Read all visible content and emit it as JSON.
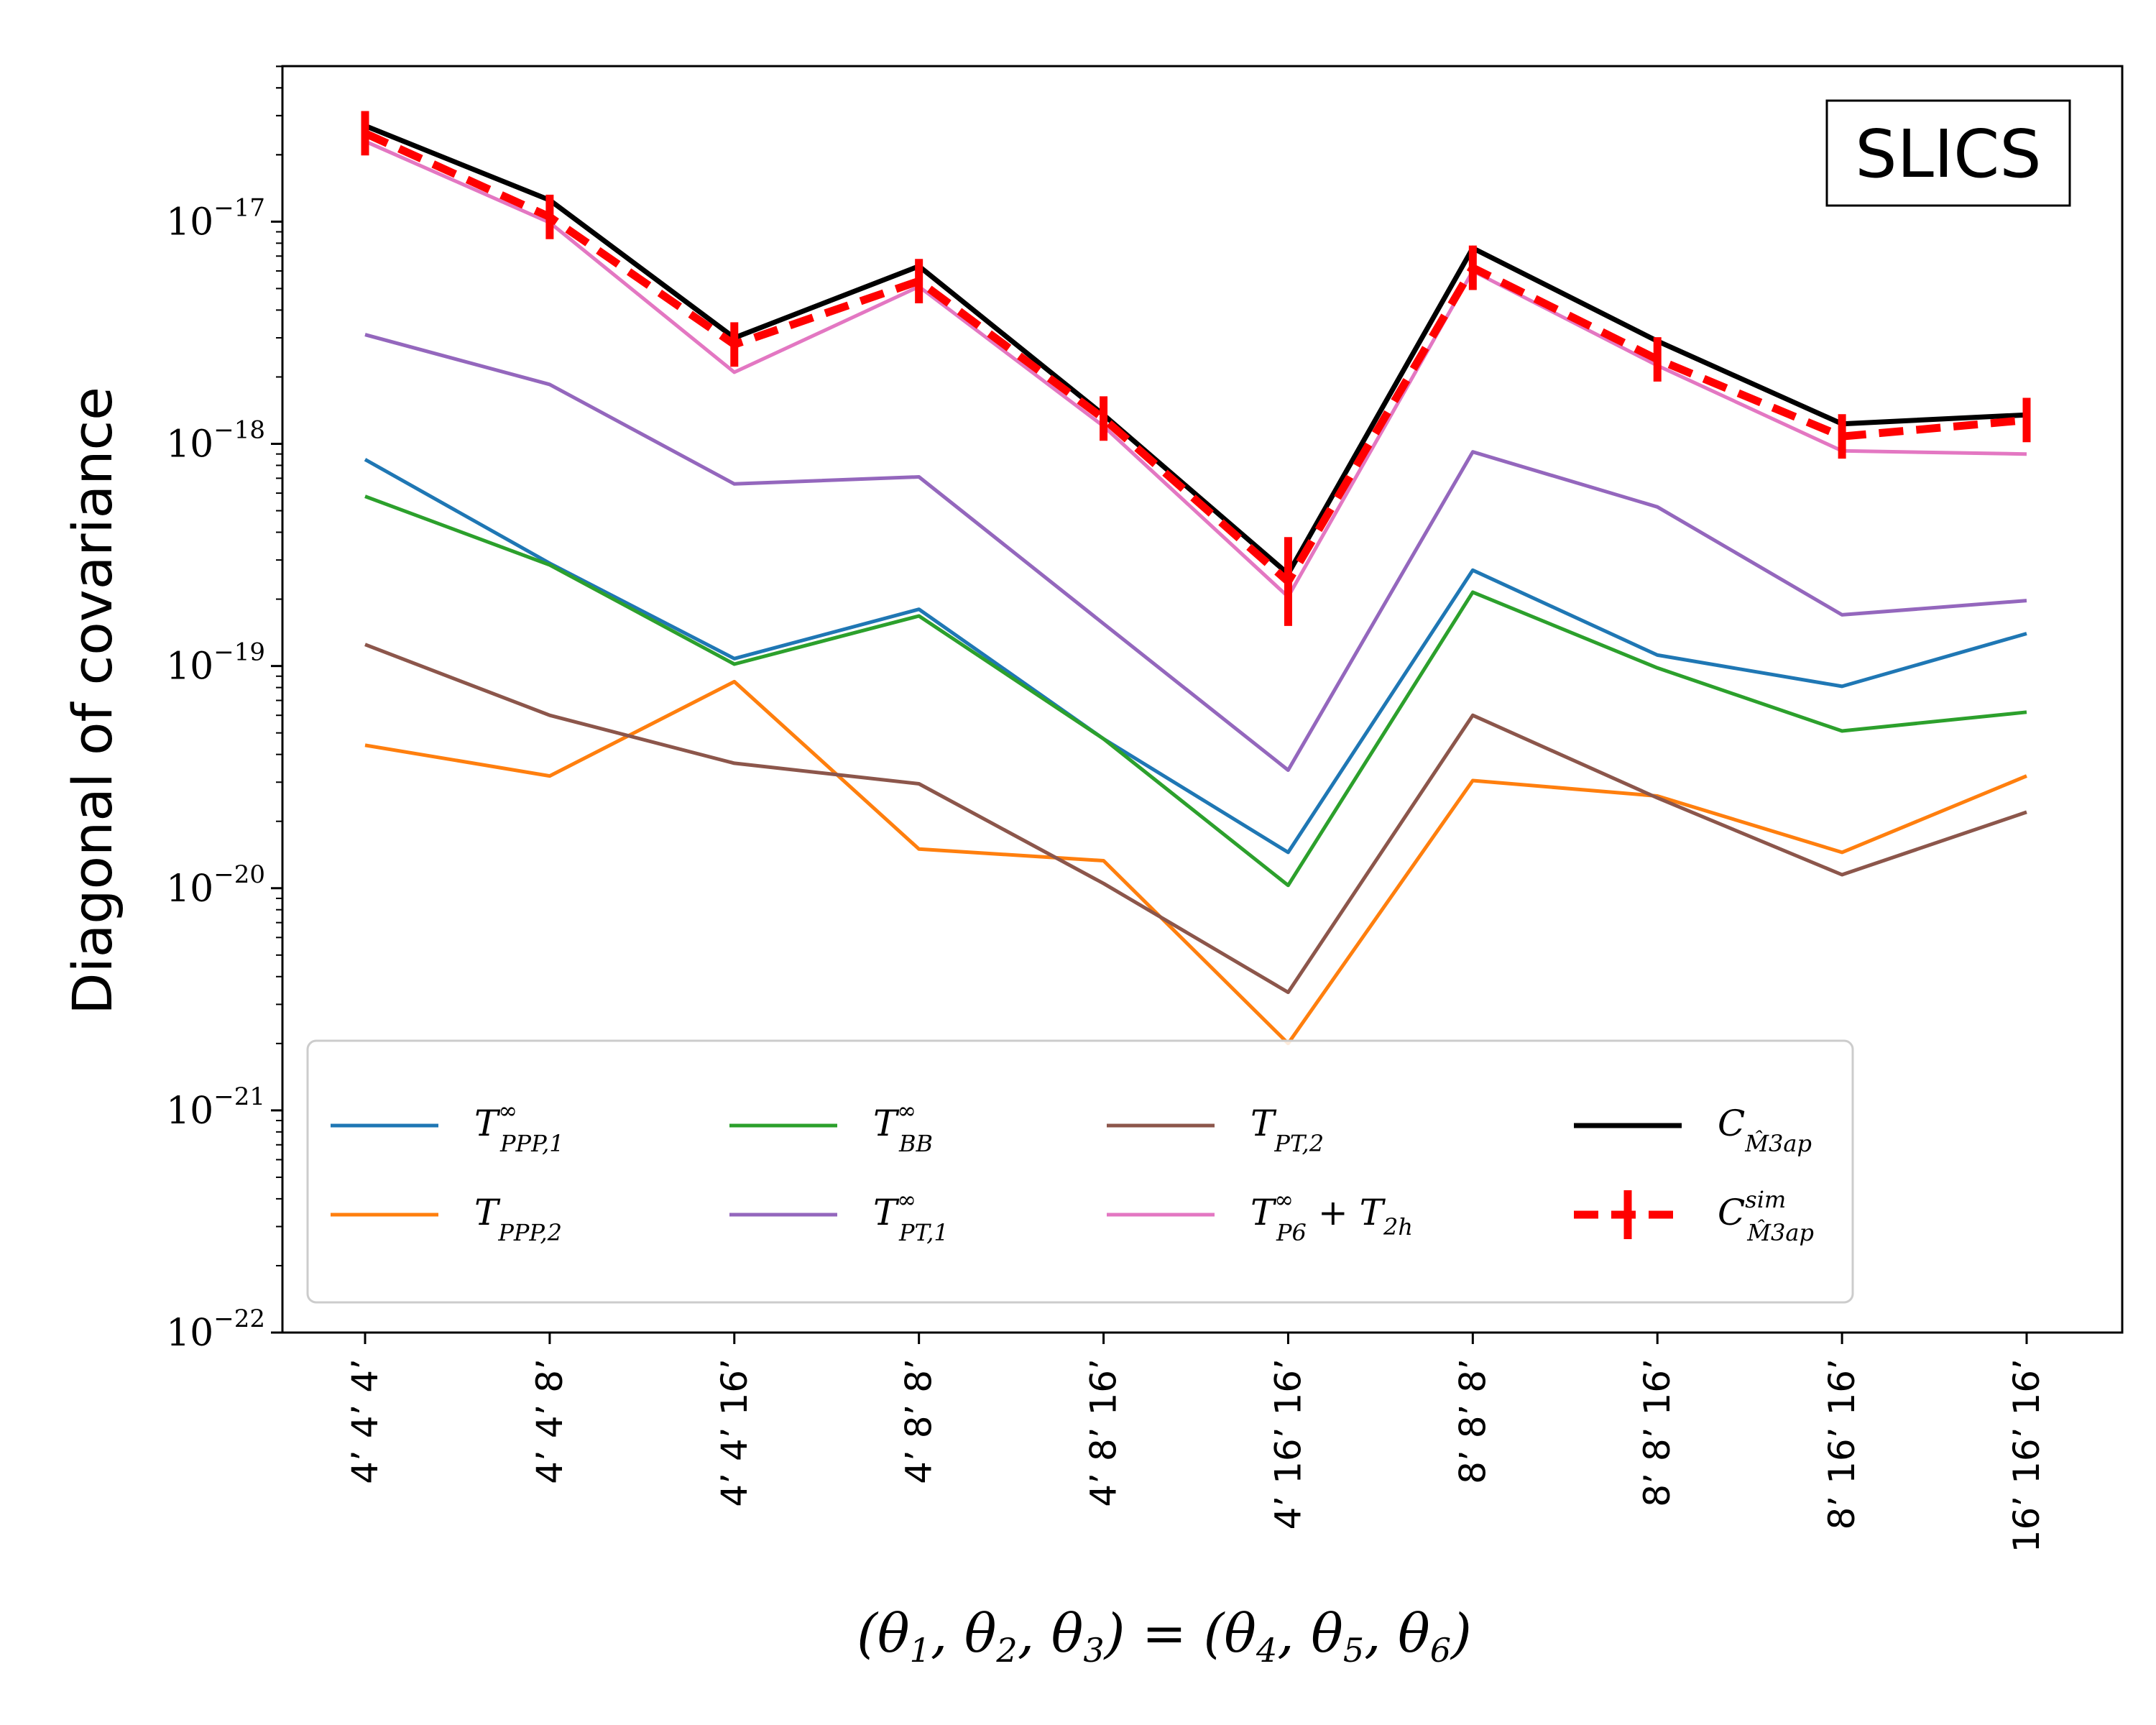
{
  "chart_data": {
    "type": "line",
    "badge": "SLICS",
    "ylabel": "Diagonal of covariance",
    "xlabel": "(θ1, θ2, θ3) = (θ4, θ5, θ6)",
    "yscale": "log",
    "ylim_exp": [
      -22,
      -16.3
    ],
    "ytick_exps": [
      -22,
      -21,
      -20,
      -19,
      -18,
      -17
    ],
    "ytick_base": "10",
    "categories": [
      "4’ 4’ 4’",
      "4’ 4’ 8’",
      "4’ 4’ 16’",
      "4’ 8’ 8’",
      "4’ 8’ 16’",
      "4’ 16’ 16’",
      "8’ 8’ 8’",
      "8’ 8’ 16’",
      "8’ 16’ 16’",
      "16’ 16’ 16’"
    ],
    "legend_position": "lower-center",
    "series": [
      {
        "name": "T∞PPP,1",
        "main": "T",
        "sup": "∞",
        "sub": "PPP,1",
        "color": "#1f77b4",
        "style": "solid",
        "values": [
          8.5e-19,
          2.9e-19,
          1.08e-19,
          1.8e-19,
          4.7e-20,
          1.45e-20,
          2.7e-19,
          1.12e-19,
          8.1e-20,
          1.4e-19
        ]
      },
      {
        "name": "TPPP,2",
        "main": "T",
        "sup": "",
        "sub": "PPP,2",
        "color": "#ff7f0e",
        "style": "solid",
        "values": [
          4.4e-20,
          3.2e-20,
          8.5e-20,
          1.5e-20,
          1.33e-20,
          2e-21,
          3.05e-20,
          2.6e-20,
          1.45e-20,
          3.2e-20
        ]
      },
      {
        "name": "T∞BB",
        "main": "T",
        "sup": "∞",
        "sub": "BB",
        "color": "#2ca02c",
        "style": "solid",
        "values": [
          5.8e-19,
          2.85e-19,
          1.02e-19,
          1.68e-19,
          4.7e-20,
          1.03e-20,
          2.15e-19,
          9.8e-20,
          5.1e-20,
          6.2e-20
        ]
      },
      {
        "name": "T∞PT,1",
        "main": "T",
        "sup": "∞",
        "sub": "PT,1",
        "color": "#9467bd",
        "style": "solid",
        "values": [
          3.1e-18,
          1.85e-18,
          6.6e-19,
          7.1e-19,
          1.55e-19,
          3.4e-20,
          9.2e-19,
          5.2e-19,
          1.7e-19,
          1.97e-19
        ]
      },
      {
        "name": "TPT,2",
        "main": "T",
        "sup": "",
        "sub": "PT,2",
        "color": "#8c564b",
        "style": "solid",
        "values": [
          1.25e-19,
          6e-20,
          3.65e-20,
          2.95e-20,
          1.05e-20,
          3.4e-21,
          6e-20,
          2.55e-20,
          1.15e-20,
          2.2e-20
        ]
      },
      {
        "name": "T∞P6 + T2h",
        "main": "T",
        "sup": "∞",
        "sub": "P6",
        "extra": "+ T",
        "extra_sub": "2h",
        "color": "#e377c2",
        "style": "solid",
        "values": [
          2.3e-17,
          9.9e-18,
          2.1e-18,
          5.1e-18,
          1.2e-18,
          2.05e-19,
          6e-18,
          2.25e-18,
          9.3e-19,
          9e-19
        ]
      },
      {
        "name": "C M̂3ap",
        "main": "C",
        "sup": "",
        "sub": "M̂3ap",
        "color": "#000000",
        "style": "solid",
        "values": [
          2.7e-17,
          1.25e-17,
          3e-18,
          6.3e-18,
          1.35e-18,
          2.6e-19,
          7.6e-18,
          2.9e-18,
          1.23e-18,
          1.35e-18
        ]
      },
      {
        "name": "Csim M̂3ap",
        "main": "C",
        "sup": "sim",
        "sub": "M̂3ap",
        "color": "#ff0000",
        "style": "dashed-errorbar",
        "values": [
          2.5e-17,
          1.05e-17,
          2.8e-18,
          5.4e-18,
          1.3e-18,
          2.4e-19,
          6.2e-18,
          2.4e-18,
          1.08e-18,
          1.28e-18
        ],
        "errors": [
          0.1,
          0.1,
          0.1,
          0.1,
          0.1,
          0.2,
          0.1,
          0.1,
          0.1,
          0.1
        ]
      }
    ]
  }
}
